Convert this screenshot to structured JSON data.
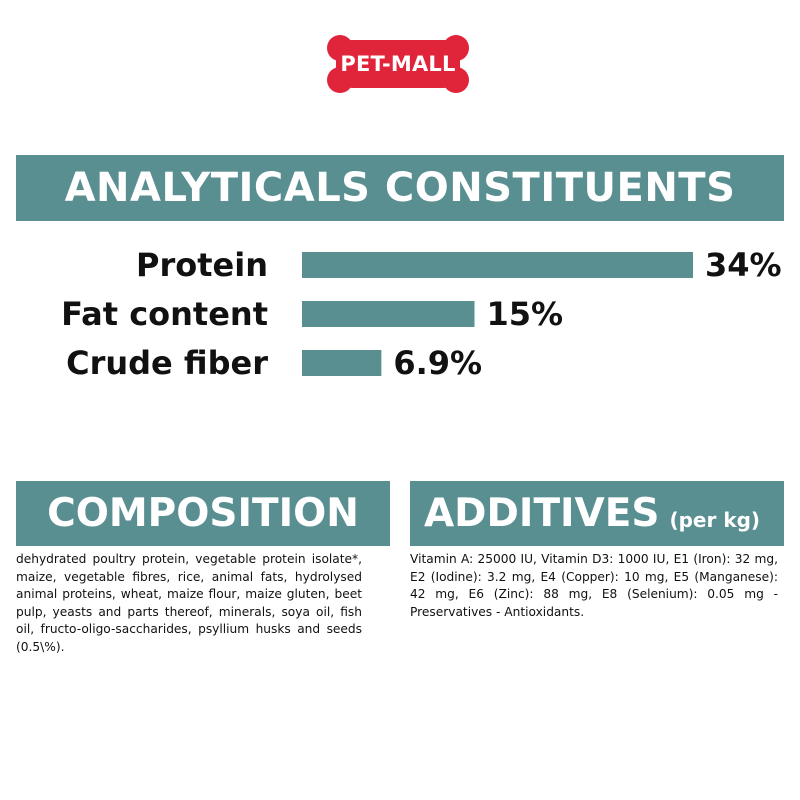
{
  "brand": {
    "logo_text": "PET-MALL",
    "colors": {
      "logo_red": "#e0243a",
      "band_teal": "#5a8f92",
      "text": "#111111"
    }
  },
  "analytics": {
    "heading": "ANALYTICALS CONSTITUENTS"
  },
  "chart_data": {
    "type": "bar",
    "orientation": "horizontal",
    "categories": [
      "Protein",
      "Fat content",
      "Crude fiber"
    ],
    "values": [
      34,
      15,
      6.9
    ],
    "value_labels": [
      "34%",
      "15%",
      "6.9%"
    ],
    "unit": "%",
    "xlim": [
      0,
      34
    ],
    "grid": false,
    "bar_color": "#5a8f92"
  },
  "composition": {
    "heading": "COMPOSITION",
    "text": "dehydrated poultry protein, vegetable protein isolate*, maize, vegetable fibres, rice, animal fats, hydrolysed animal proteins, wheat, maize flour, maize gluten, beet pulp, yeasts and parts thereof, minerals, soya oil, fish oil, fructo-oligo-saccharides, psyllium husks and seeds (0.5\\%)."
  },
  "additives": {
    "heading": "ADDITIVES",
    "heading_suffix": "(per kg)",
    "text": "Vitamin A: 25000 IU, Vitamin D3: 1000 IU, E1 (Iron): 32 mg, E2 (Iodine): 3.2 mg, E4 (Copper): 10 mg, E5 (Manganese): 42 mg, E6 (Zinc): 88 mg, E8 (Selenium): 0.05 mg - Preservatives - Antioxidants."
  }
}
